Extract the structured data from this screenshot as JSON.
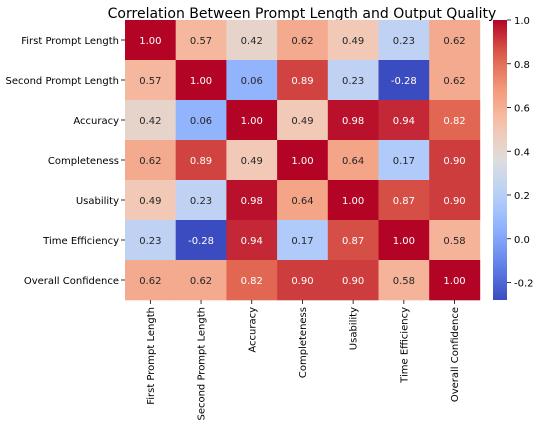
{
  "chart_data": {
    "type": "heatmap",
    "title": "Correlation Between Prompt Length and Output Quality",
    "row_labels": [
      "First Prompt Length",
      "Second Prompt Length",
      "Accuracy",
      "Completeness",
      "Usability",
      "Time Efficiency",
      "Overall Confidence"
    ],
    "col_labels": [
      "First Prompt Length",
      "Second Prompt Length",
      "Accuracy",
      "Completeness",
      "Usability",
      "Time Efficiency",
      "Overall Confidence"
    ],
    "values": [
      [
        1.0,
        0.57,
        0.42,
        0.62,
        0.49,
        0.23,
        0.62
      ],
      [
        0.57,
        1.0,
        0.06,
        0.89,
        0.23,
        -0.28,
        0.62
      ],
      [
        0.42,
        0.06,
        1.0,
        0.49,
        0.98,
        0.94,
        0.82
      ],
      [
        0.62,
        0.89,
        0.49,
        1.0,
        0.64,
        0.17,
        0.9
      ],
      [
        0.49,
        0.23,
        0.98,
        0.64,
        1.0,
        0.87,
        0.9
      ],
      [
        0.23,
        -0.28,
        0.94,
        0.17,
        0.87,
        1.0,
        0.58
      ],
      [
        0.62,
        0.62,
        0.82,
        0.9,
        0.9,
        0.58,
        1.0
      ]
    ],
    "value_range": [
      -0.28,
      1.0
    ],
    "colorbar_ticks": [
      1.0,
      0.8,
      0.6,
      0.4,
      0.2,
      0.0,
      -0.2
    ],
    "colormap": "coolwarm",
    "annotated": true,
    "grid": false,
    "colorbar_position": "right"
  }
}
